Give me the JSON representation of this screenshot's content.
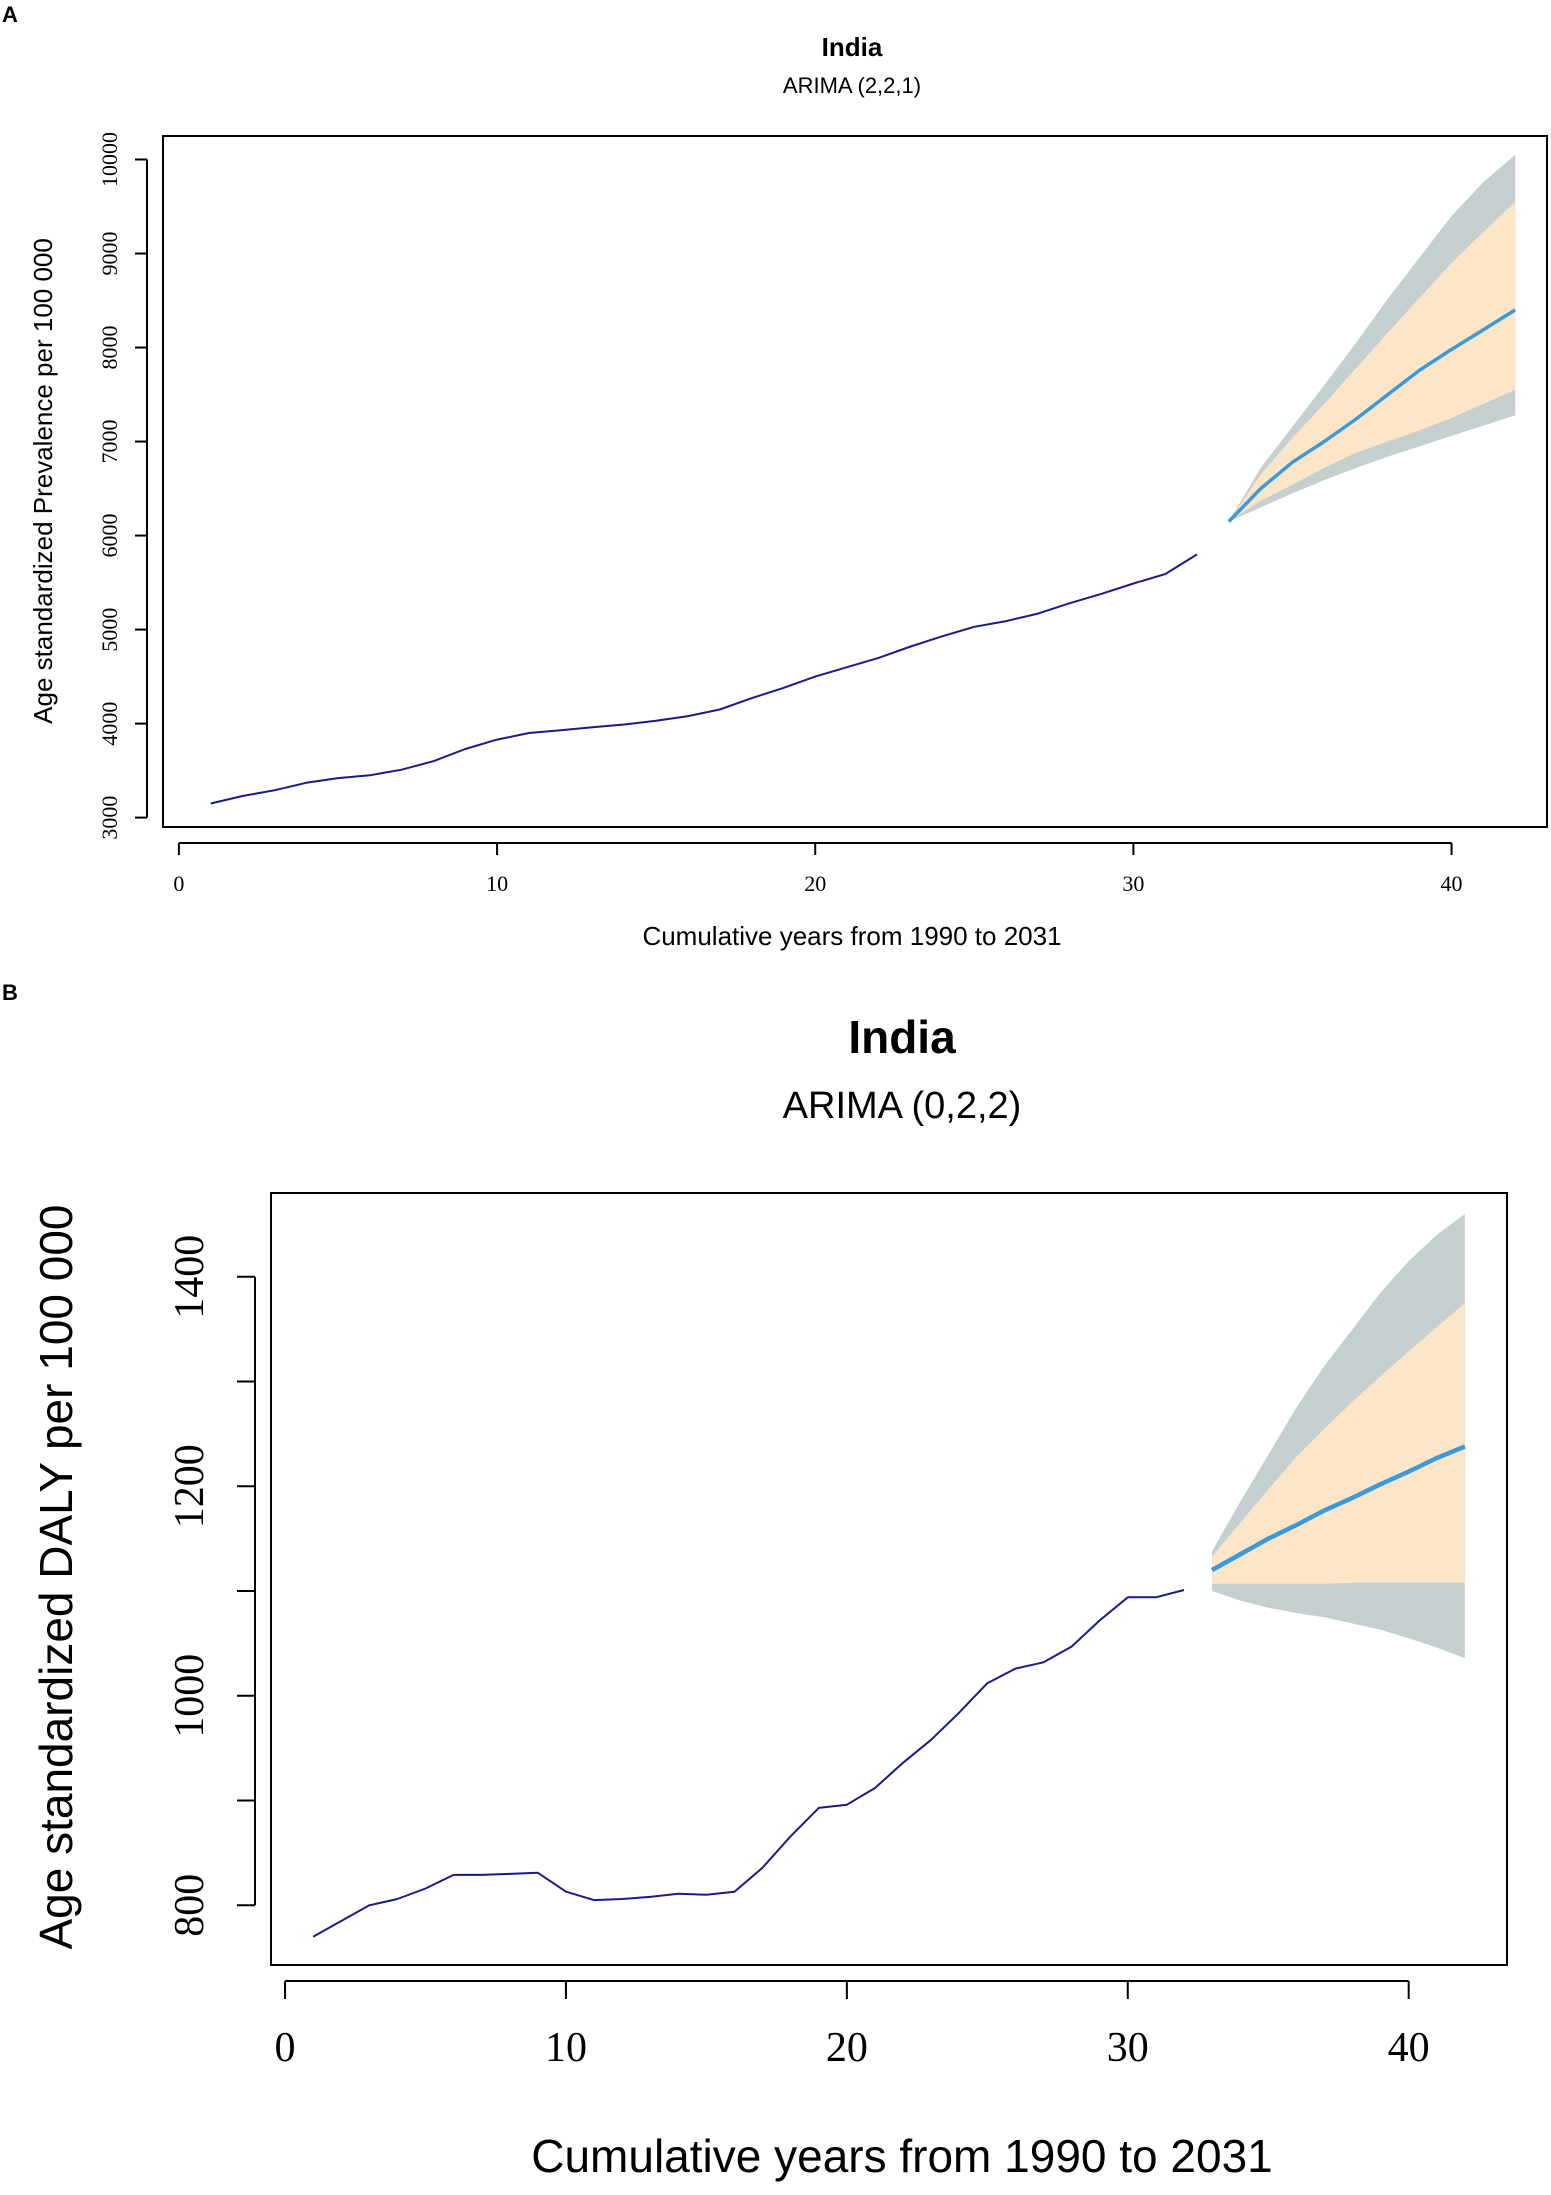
{
  "chart_data": [
    {
      "panel": "A",
      "type": "line",
      "title": "India",
      "subtitle": "ARIMA (2,2,1)",
      "xlabel": "Cumulative years from 1990 to 2031",
      "ylabel": "Age standardized Prevalence per 100 000",
      "xlim": [
        -0.5,
        43
      ],
      "ylim": [
        2900,
        10250
      ],
      "xticks": [
        0,
        10,
        20,
        30,
        40
      ],
      "yticks": [
        3000,
        4000,
        5000,
        6000,
        7000,
        8000,
        9000,
        10000
      ],
      "grid": false,
      "observed": {
        "x": [
          1,
          2,
          3,
          4,
          5,
          6,
          7,
          8,
          9,
          10,
          11,
          12,
          13,
          14,
          15,
          16,
          17,
          18,
          19,
          20,
          21,
          22,
          23,
          24,
          25,
          26,
          27,
          28,
          29,
          30,
          31,
          32
        ],
        "y": [
          3150,
          3230,
          3290,
          3370,
          3420,
          3450,
          3510,
          3600,
          3730,
          3830,
          3900,
          3930,
          3960,
          3990,
          4030,
          4080,
          4150,
          4270,
          4380,
          4500,
          4600,
          4700,
          4820,
          4930,
          5030,
          5090,
          5170,
          5280,
          5380,
          5490,
          5590,
          5800
        ]
      },
      "forecast": {
        "x": [
          33,
          34,
          35,
          36,
          37,
          38,
          39,
          40,
          41,
          42
        ],
        "mean": [
          6150,
          6500,
          6780,
          7000,
          7240,
          7500,
          7760,
          7980,
          8190,
          8400
        ],
        "lower80": [
          6150,
          6370,
          6540,
          6720,
          6880,
          7000,
          7120,
          7250,
          7400,
          7550
        ],
        "upper80": [
          6150,
          6650,
          7040,
          7400,
          7780,
          8160,
          8530,
          8900,
          9230,
          9550
        ],
        "lower95": [
          6150,
          6300,
          6450,
          6590,
          6720,
          6840,
          6950,
          7060,
          7170,
          7280
        ],
        "upper95": [
          6150,
          6720,
          7160,
          7600,
          8050,
          8520,
          8960,
          9400,
          9760,
          10050
        ]
      },
      "colors": {
        "observed": "#1a1a8c",
        "forecast": "#3b9ad9",
        "band80": "#fde5c7",
        "band95": "#c5cfd0"
      }
    },
    {
      "panel": "B",
      "type": "line",
      "title": "India",
      "subtitle": "ARIMA (0,2,2)",
      "xlabel": "Cumulative years from 1990 to 2031",
      "ylabel": "Age standardized DALY per 100 000",
      "xlim": [
        -0.5,
        43.5
      ],
      "ylim": [
        743,
        1480
      ],
      "xticks": [
        0,
        10,
        20,
        30,
        40
      ],
      "yticks": [
        800,
        1000,
        1200,
        1400
      ],
      "minor_yticks": [
        900,
        1100,
        1300
      ],
      "grid": false,
      "observed": {
        "x": [
          1,
          2,
          3,
          4,
          5,
          6,
          7,
          8,
          9,
          10,
          11,
          12,
          13,
          14,
          15,
          16,
          17,
          18,
          19,
          20,
          21,
          22,
          23,
          24,
          25,
          26,
          27,
          28,
          29,
          30,
          31,
          32
        ],
        "y": [
          770,
          785,
          800,
          806,
          816,
          829,
          829,
          830,
          831,
          813,
          805,
          806,
          808,
          811,
          810,
          813,
          836,
          866,
          893,
          896,
          912,
          936,
          958,
          984,
          1012,
          1026,
          1032,
          1047,
          1072,
          1094,
          1094,
          1101
        ]
      },
      "forecast": {
        "x": [
          33,
          34,
          35,
          36,
          37,
          38,
          39,
          40,
          41,
          42
        ],
        "mean": [
          1120,
          1135,
          1150,
          1163,
          1177,
          1189,
          1202,
          1214,
          1227,
          1238
        ],
        "lower80": [
          1107,
          1107,
          1107,
          1107,
          1107,
          1108,
          1108,
          1108,
          1108,
          1108
        ],
        "upper80": [
          1133,
          1165,
          1197,
          1228,
          1255,
          1281,
          1305,
          1329,
          1352,
          1375
        ],
        "lower95": [
          1100,
          1091,
          1084,
          1079,
          1075,
          1069,
          1063,
          1055,
          1046,
          1036
        ],
        "upper95": [
          1138,
          1185,
          1230,
          1275,
          1315,
          1350,
          1385,
          1415,
          1440,
          1460
        ]
      },
      "colors": {
        "observed": "#1a1a8c",
        "forecast": "#3b9ad9",
        "band80": "#fde5c7",
        "band95": "#c5cfd0"
      }
    }
  ],
  "panel_labels": [
    "A",
    "B"
  ]
}
